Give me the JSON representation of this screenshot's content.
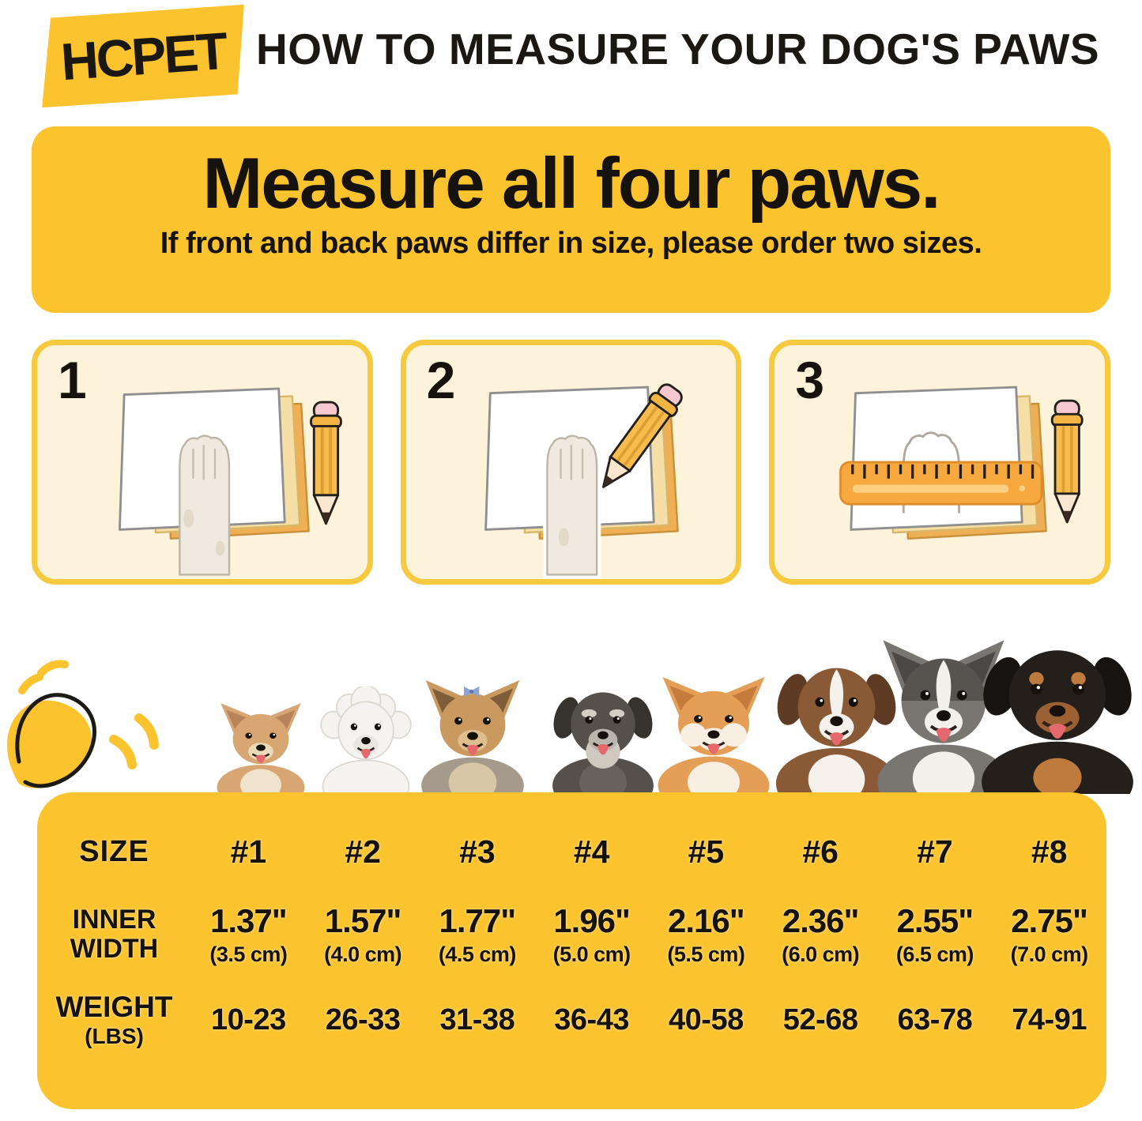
{
  "colors": {
    "accent_yellow": "#FBC42E",
    "card_background": "#FCF3DA",
    "card_border": "#F6C93F",
    "text_black": "#16130f"
  },
  "header": {
    "brand": "HCPET",
    "title": "HOW TO MEASURE YOUR DOG'S PAWS"
  },
  "banner": {
    "heading": "Measure all four paws.",
    "subheading": "If front and back paws differ in size, please order two sizes."
  },
  "steps": [
    {
      "number": "1",
      "illustration": "paw-on-paper"
    },
    {
      "number": "2",
      "illustration": "trace-paw-with-pencil"
    },
    {
      "number": "3",
      "illustration": "measure-outline-with-ruler"
    }
  ],
  "dogs": [
    {
      "breed": "chihuahua"
    },
    {
      "breed": "bichon-frise"
    },
    {
      "breed": "yorkshire-terrier"
    },
    {
      "breed": "miniature-schnauzer"
    },
    {
      "breed": "shiba-inu"
    },
    {
      "breed": "australian-shepherd"
    },
    {
      "breed": "alaskan-malamute"
    },
    {
      "breed": "rottweiler"
    }
  ],
  "size_chart": {
    "size_label": "SIZE",
    "sizes": [
      "#1",
      "#2",
      "#3",
      "#4",
      "#5",
      "#6",
      "#7",
      "#8"
    ],
    "inner_width_label_line1": "INNER",
    "inner_width_label_line2": "WIDTH",
    "inner_width_in": [
      "1.37\"",
      "1.57\"",
      "1.77\"",
      "1.96\"",
      "2.16\"",
      "2.36\"",
      "2.55\"",
      "2.75\""
    ],
    "inner_width_cm": [
      "(3.5 cm)",
      "(4.0 cm)",
      "(4.5 cm)",
      "(5.0 cm)",
      "(5.5 cm)",
      "(6.0 cm)",
      "(6.5 cm)",
      "(7.0 cm)"
    ],
    "weight_label_line1": "WEIGHT",
    "weight_label_line2": "(LBS)",
    "weight_lbs": [
      "10-23",
      "26-33",
      "31-38",
      "36-43",
      "40-58",
      "52-68",
      "63-78",
      "74-91"
    ]
  }
}
